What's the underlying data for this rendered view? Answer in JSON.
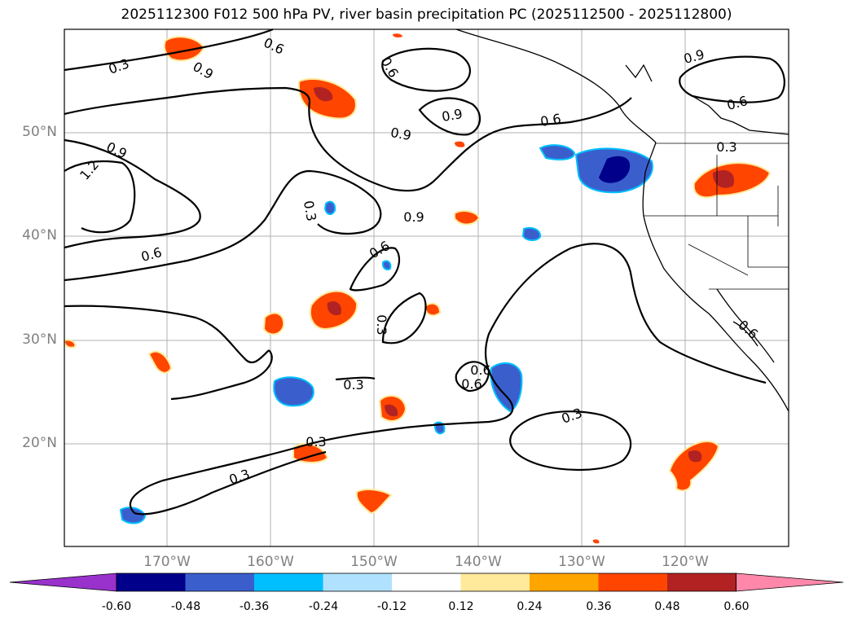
{
  "title": "2025112300 F012 500 hPa PV, river basin precipitation PC (2025112500 - 2025112800)",
  "lat_labels": [
    "50°N",
    "40°N",
    "30°N",
    "20°N"
  ],
  "lon_labels": [
    "170°W",
    "160°W",
    "150°W",
    "140°W",
    "130°W",
    "120°W"
  ],
  "contour_labels": [
    "0.3",
    "0.6",
    "0.9",
    "0.6",
    "0.9",
    "0.9",
    "0.6",
    "0.9",
    "0.6",
    "1.2",
    "0.9",
    "0.3",
    "0.6",
    "0.6",
    "0.9",
    "0.6",
    "0.3",
    "0.3",
    "0.3",
    "0.6",
    "0.3",
    "0.3",
    "0.3",
    "0.6"
  ],
  "colorbar": {
    "ticks": [
      "-0.60",
      "-0.48",
      "-0.36",
      "-0.24",
      "-0.12",
      "0.12",
      "0.24",
      "0.36",
      "0.48",
      "0.60"
    ],
    "colors": [
      "#9932cc",
      "#00008b",
      "#3a5fcd",
      "#00bfff",
      "#b0e2ff",
      "#ffffff",
      "#ffe99a",
      "#ffa500",
      "#ff4500",
      "#b22222",
      "#ff88aa"
    ]
  },
  "map_colors": {
    "land_outline": "#000000",
    "contour": "#000000",
    "grid": "#b0b0b0"
  }
}
